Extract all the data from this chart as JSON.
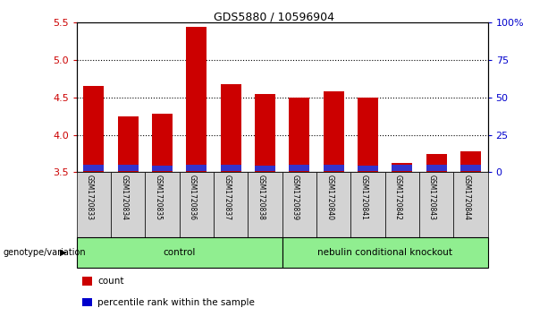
{
  "title": "GDS5880 / 10596904",
  "samples": [
    "GSM1720833",
    "GSM1720834",
    "GSM1720835",
    "GSM1720836",
    "GSM1720837",
    "GSM1720838",
    "GSM1720839",
    "GSM1720840",
    "GSM1720841",
    "GSM1720842",
    "GSM1720843",
    "GSM1720844"
  ],
  "red_values": [
    4.65,
    4.25,
    4.28,
    5.45,
    4.68,
    4.55,
    4.5,
    4.58,
    4.5,
    3.62,
    3.75,
    3.78
  ],
  "blue_values": [
    0.08,
    0.08,
    0.07,
    0.08,
    0.08,
    0.07,
    0.09,
    0.08,
    0.07,
    0.08,
    0.09,
    0.08
  ],
  "ymin": 3.5,
  "ymax": 5.5,
  "yticks": [
    3.5,
    4.0,
    4.5,
    5.0,
    5.5
  ],
  "right_yticks": [
    0,
    25,
    50,
    75,
    100
  ],
  "right_ytick_labels": [
    "0",
    "25",
    "50",
    "75",
    "100%"
  ],
  "group_row_label": "genotype/variation",
  "group_data": [
    {
      "label": "control",
      "start": 0,
      "end": 5,
      "color": "#90ee90"
    },
    {
      "label": "nebulin conditional knockout",
      "start": 6,
      "end": 11,
      "color": "#90ee90"
    }
  ],
  "legend_items": [
    {
      "color": "#cc0000",
      "label": "count"
    },
    {
      "color": "#0000cc",
      "label": "percentile rank within the sample"
    }
  ],
  "bar_width": 0.6,
  "red_color": "#cc0000",
  "blue_color": "#3333cc",
  "sample_bg": "#d3d3d3",
  "tick_color_left": "#cc0000",
  "tick_color_right": "#0000cc"
}
